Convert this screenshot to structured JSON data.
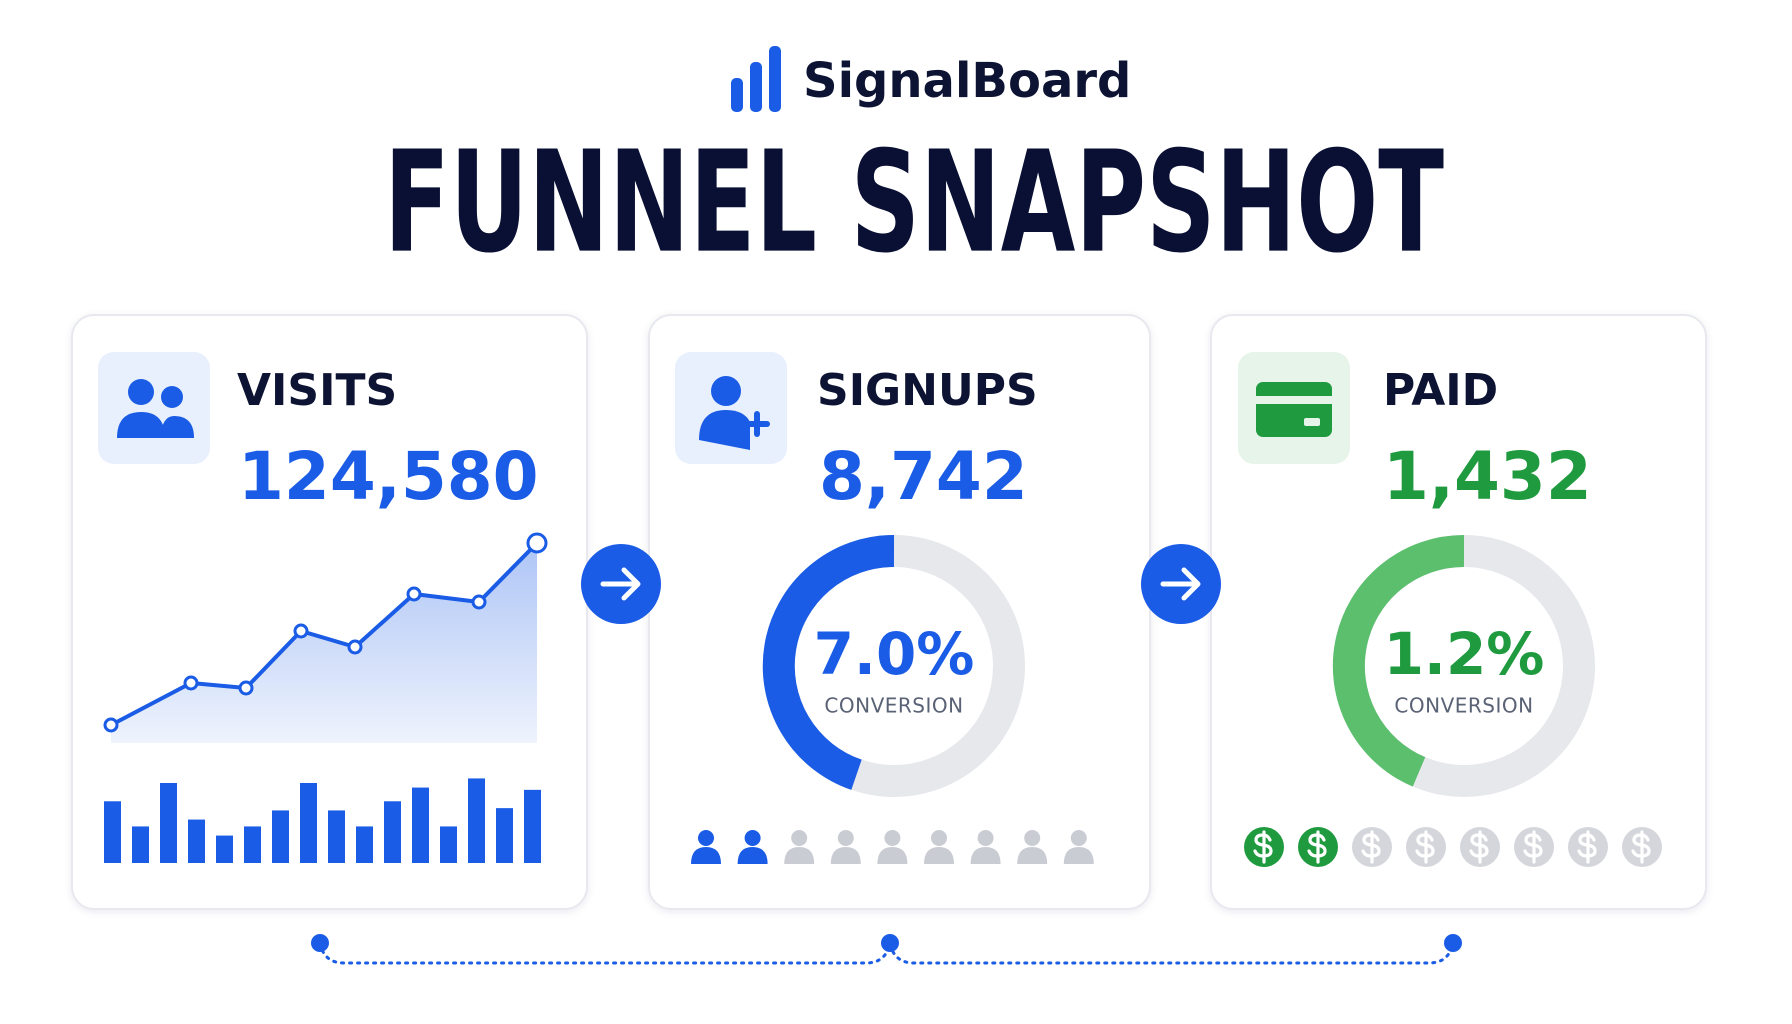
{
  "brand": "SignalBoard",
  "title": "FUNNEL SNAPSHOT",
  "cards": [
    {
      "label": "VISITS",
      "value": "124,580",
      "trend": [
        9,
        30,
        27.5,
        56,
        48,
        74.5,
        70.5,
        100
      ],
      "bars": [
        54,
        32,
        70,
        38,
        24,
        32,
        46,
        70,
        46,
        32,
        54,
        66,
        32,
        74,
        48,
        64
      ]
    },
    {
      "label": "SIGNUPS",
      "value": "8,742",
      "rate": "7.0%",
      "rate_label": "CONVERSION"
    },
    {
      "label": "PAID",
      "value": "1,432",
      "rate": "1.2%",
      "rate_label": "CONVERSION"
    }
  ]
}
